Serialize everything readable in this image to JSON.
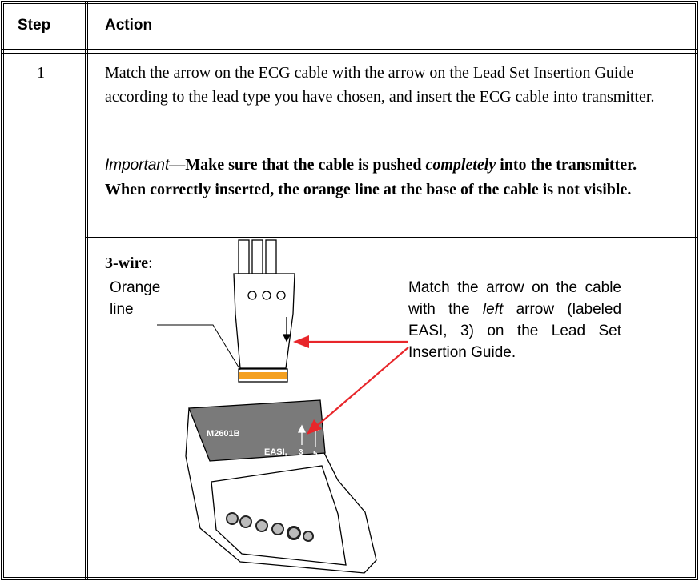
{
  "header": {
    "step": "Step",
    "action": "Action"
  },
  "rows": [
    {
      "step": "1",
      "text": "Match the arrow on the ECG cable with the arrow on the Lead Set Insertion Guide according to the lead type you have chosen, and insert the ECG cable into transmitter.",
      "important": {
        "label": "Important",
        "text_before": "—Make sure that the cable is pushed ",
        "emphasis": "completely",
        "text_after": " into the transmitter. When correctly inserted, the orange line at the base of the cable is not visible."
      },
      "figure": {
        "label": "3-wire",
        "label_suffix": ":",
        "orange_callout": "Orange line",
        "callout": {
          "before": "Match the arrow on the cable with the ",
          "emphasis": "left",
          "after": " arrow (labeled EASI, 3) on the Lead Set Insertion Guide."
        },
        "device_model": "M2601B",
        "easi_label": "EASI,",
        "arrow_3": "3",
        "arrow_5": "5"
      }
    }
  ]
}
